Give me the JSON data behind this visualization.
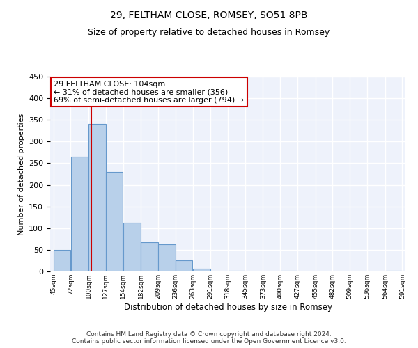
{
  "title": "29, FELTHAM CLOSE, ROMSEY, SO51 8PB",
  "subtitle": "Size of property relative to detached houses in Romsey",
  "xlabel": "Distribution of detached houses by size in Romsey",
  "ylabel": "Number of detached properties",
  "bar_left_edges": [
    45,
    72,
    100,
    127,
    154,
    182,
    209,
    236,
    263,
    291,
    318,
    345,
    373,
    400,
    427,
    455,
    482,
    509,
    536,
    564
  ],
  "bar_widths": [
    27,
    28,
    27,
    27,
    28,
    27,
    27,
    27,
    28,
    27,
    27,
    28,
    27,
    27,
    28,
    27,
    27,
    27,
    28,
    27
  ],
  "bar_heights": [
    50,
    265,
    340,
    230,
    113,
    67,
    62,
    25,
    7,
    0,
    2,
    0,
    0,
    2,
    0,
    0,
    0,
    0,
    0,
    2
  ],
  "tick_labels": [
    "45sqm",
    "72sqm",
    "100sqm",
    "127sqm",
    "154sqm",
    "182sqm",
    "209sqm",
    "236sqm",
    "263sqm",
    "291sqm",
    "318sqm",
    "345sqm",
    "373sqm",
    "400sqm",
    "427sqm",
    "455sqm",
    "482sqm",
    "509sqm",
    "536sqm",
    "564sqm",
    "591sqm"
  ],
  "bar_color": "#b8d0ea",
  "bar_edge_color": "#6699cc",
  "vline_x": 104,
  "vline_color": "#cc0000",
  "annotation_text": "29 FELTHAM CLOSE: 104sqm\n← 31% of detached houses are smaller (356)\n69% of semi-detached houses are larger (794) →",
  "annotation_box_color": "#ffffff",
  "annotation_box_edge": "#cc0000",
  "ylim": [
    0,
    450
  ],
  "background_color": "#ffffff",
  "plot_bg_color": "#eef2fb",
  "grid_color": "#ffffff",
  "footer_text": "Contains HM Land Registry data © Crown copyright and database right 2024.\nContains public sector information licensed under the Open Government Licence v3.0.",
  "title_fontsize": 10,
  "subtitle_fontsize": 9,
  "xlabel_fontsize": 8.5,
  "ylabel_fontsize": 8,
  "tick_fontsize": 6.5,
  "annotation_fontsize": 8,
  "footer_fontsize": 6.5
}
